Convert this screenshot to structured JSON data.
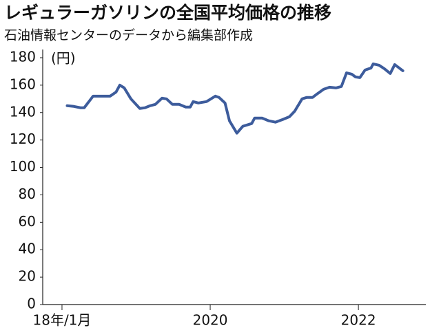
{
  "chart_data": {
    "type": "line",
    "title": "レギュラーガソリンの全国平均価格の推移",
    "subtitle": "石油情報センターのデータから編集部作成",
    "y_unit": "(円)",
    "x": [
      2018.07,
      2018.16,
      2018.25,
      2018.3,
      2018.42,
      2018.51,
      2018.65,
      2018.73,
      2018.78,
      2018.84,
      2018.93,
      2019.05,
      2019.12,
      2019.19,
      2019.26,
      2019.35,
      2019.41,
      2019.49,
      2019.58,
      2019.67,
      2019.73,
      2019.77,
      2019.84,
      2019.95,
      2020.07,
      2020.12,
      2020.2,
      2020.26,
      2020.36,
      2020.44,
      2020.56,
      2020.6,
      2020.7,
      2020.79,
      2020.88,
      2020.98,
      2021.07,
      2021.14,
      2021.24,
      2021.3,
      2021.38,
      2021.44,
      2021.53,
      2021.61,
      2021.7,
      2021.77,
      2021.84,
      2021.91,
      2021.96,
      2022.02,
      2022.09,
      2022.17,
      2022.2,
      2022.28,
      2022.35,
      2022.43,
      2022.49,
      2022.6
    ],
    "series": [
      {
        "color": "#3d5c9c",
        "values": [
          145,
          144.5,
          143.5,
          143.5,
          152,
          152,
          152,
          155,
          160,
          158,
          150,
          143,
          143.5,
          145,
          146,
          150.5,
          150,
          146,
          146,
          144,
          144,
          148,
          147,
          148,
          152,
          151,
          147,
          134,
          125,
          130,
          132,
          136,
          136,
          134,
          133,
          135,
          137,
          141,
          150,
          151,
          151,
          153.5,
          157,
          158.5,
          158,
          159,
          169,
          168,
          166,
          165.5,
          171,
          172.5,
          175.5,
          174.5,
          172,
          168.5,
          175,
          170.5
        ]
      }
    ],
    "xlim": [
      2017.74,
      2022.91
    ],
    "xticks": [
      {
        "value": 2018,
        "label": "18年/1月"
      },
      2020,
      2022
    ],
    "ylim": [
      0,
      186
    ],
    "yticks": [
      0,
      20,
      40,
      60,
      80,
      100,
      120,
      140,
      160,
      180
    ],
    "grid": false
  }
}
